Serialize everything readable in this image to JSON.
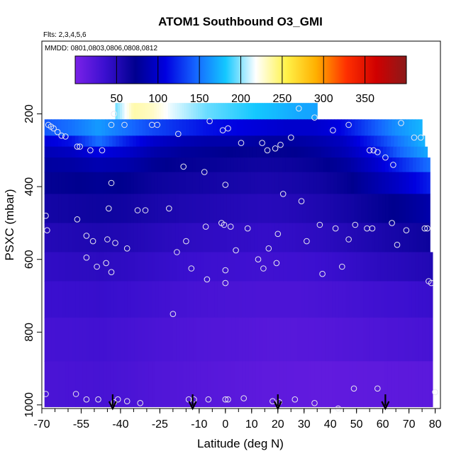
{
  "chart_data": {
    "type": "heatmap",
    "title": "ATOM1 Southbound O3_GMI",
    "annotations": [
      "Flts: 2,3,4,5,6",
      "MMDD: 0801,0803,0806,0808,0812"
    ],
    "xlabel": "Latitude (deg N)",
    "ylabel": "PSXC (mbar)",
    "xlim": [
      -70,
      82
    ],
    "ylim": [
      1010,
      0
    ],
    "x_ticks": [
      -70,
      -55,
      -40,
      -25,
      -10,
      0,
      10,
      20,
      30,
      40,
      50,
      60,
      70,
      80
    ],
    "x_tick_labels": [
      "-70",
      "-55",
      "-40",
      "-25",
      "-10",
      "0",
      "10",
      "20",
      "30",
      "40",
      "50",
      "60",
      "70",
      "80"
    ],
    "y_ticks": [
      200,
      400,
      600,
      800,
      1000
    ],
    "y_tick_labels": [
      "200",
      "400",
      "600",
      "800",
      "1000"
    ],
    "colorbar": {
      "range": [
        0,
        400
      ],
      "ticks": [
        50,
        100,
        150,
        200,
        250,
        300,
        350
      ],
      "tick_labels": [
        "50",
        "100",
        "150",
        "200",
        "250",
        "300",
        "350"
      ],
      "colors": [
        "#7a22e8",
        "#3a0fcf",
        "#00008f",
        "#0000e0",
        "#1565ff",
        "#14c8ff",
        "#ffffff",
        "#fff34a",
        "#ffb000",
        "#ff3000",
        "#d00000",
        "#8b1a1a"
      ]
    },
    "curtain": {
      "lat_range": [
        -69,
        80
      ],
      "fields": [
        {
          "p_top": 170,
          "p_bottom": 215,
          "lat_from": -42,
          "lat_to": 35,
          "o3": [
            195,
            235,
            230,
            215,
            205,
            195,
            190,
            185,
            180,
            175,
            170,
            168
          ]
        },
        {
          "p_top": 215,
          "p_bottom": 260,
          "lat_from": -69,
          "lat_to": 75,
          "o3": [
            140,
            150,
            165,
            150,
            135,
            125,
            115,
            110,
            105,
            100,
            100,
            110,
            135,
            160,
            175
          ]
        },
        {
          "p_top": 260,
          "p_bottom": 290,
          "lat_from": -69,
          "lat_to": 76,
          "o3": [
            105,
            115,
            150,
            120,
            100,
            90,
            85,
            85,
            80,
            80,
            85,
            95,
            120,
            150,
            175
          ]
        },
        {
          "p_top": 290,
          "p_bottom": 320,
          "lat_from": -69,
          "lat_to": 77,
          "o3": [
            90,
            95,
            110,
            100,
            85,
            78,
            75,
            72,
            70,
            72,
            78,
            90,
            110,
            145,
            170
          ]
        },
        {
          "p_top": 320,
          "p_bottom": 360,
          "lat_from": -69,
          "lat_to": 78,
          "o3": [
            80,
            82,
            88,
            85,
            75,
            70,
            68,
            65,
            63,
            65,
            70,
            80,
            100,
            125,
            150
          ]
        },
        {
          "p_top": 360,
          "p_bottom": 420,
          "lat_from": -69,
          "lat_to": 78,
          "o3": [
            70,
            72,
            75,
            72,
            65,
            62,
            60,
            58,
            56,
            58,
            62,
            70,
            85,
            100,
            120
          ]
        },
        {
          "p_top": 420,
          "p_bottom": 500,
          "lat_from": -69,
          "lat_to": 78,
          "o3": [
            60,
            62,
            64,
            62,
            57,
            54,
            52,
            50,
            48,
            50,
            54,
            60,
            68,
            75,
            85
          ]
        },
        {
          "p_top": 500,
          "p_bottom": 580,
          "lat_from": -69,
          "lat_to": 78,
          "o3": [
            50,
            52,
            54,
            52,
            48,
            45,
            43,
            42,
            40,
            42,
            45,
            50,
            55,
            60,
            65
          ]
        },
        {
          "p_top": 580,
          "p_bottom": 660,
          "lat_from": -69,
          "lat_to": 79,
          "o3": [
            42,
            44,
            45,
            43,
            40,
            37,
            35,
            34,
            33,
            34,
            36,
            40,
            45,
            48,
            52
          ]
        },
        {
          "p_top": 660,
          "p_bottom": 760,
          "lat_from": -69,
          "lat_to": 79,
          "o3": [
            36,
            37,
            38,
            36,
            33,
            30,
            28,
            27,
            26,
            26,
            28,
            30,
            33,
            35,
            38
          ]
        },
        {
          "p_top": 760,
          "p_bottom": 880,
          "lat_from": -69,
          "lat_to": 79,
          "o3": [
            30,
            31,
            32,
            30,
            27,
            25,
            23,
            22,
            20,
            20,
            21,
            23,
            25,
            27,
            29
          ]
        },
        {
          "p_top": 880,
          "p_bottom": 1005,
          "lat_from": -69,
          "lat_to": 79,
          "o3": [
            27,
            28,
            29,
            27,
            24,
            22,
            20,
            18,
            16,
            15,
            14,
            15,
            16,
            17,
            18
          ]
        }
      ]
    },
    "samples": [
      [
        -67.5,
        230
      ],
      [
        -66.5,
        235
      ],
      [
        -65.5,
        240
      ],
      [
        -64,
        250
      ],
      [
        -62.5,
        260
      ],
      [
        -61,
        262
      ],
      [
        -56.5,
        290
      ],
      [
        -55.5,
        290
      ],
      [
        -51.5,
        300
      ],
      [
        -47,
        300
      ],
      [
        -42.5,
        200
      ],
      [
        -43.5,
        230
      ],
      [
        -38.5,
        230
      ],
      [
        -28,
        230
      ],
      [
        -26,
        230
      ],
      [
        -18,
        255
      ],
      [
        -6,
        220
      ],
      [
        1,
        240
      ],
      [
        -1,
        245
      ],
      [
        -8,
        360
      ],
      [
        -16,
        345
      ],
      [
        0,
        395
      ],
      [
        6,
        280
      ],
      [
        14,
        280
      ],
      [
        16,
        300
      ],
      [
        19,
        295
      ],
      [
        21,
        285
      ],
      [
        25,
        265
      ],
      [
        28,
        185
      ],
      [
        34,
        210
      ],
      [
        41,
        245
      ],
      [
        47,
        230
      ],
      [
        55,
        300
      ],
      [
        56.5,
        300
      ],
      [
        58,
        305
      ],
      [
        61,
        320
      ],
      [
        64,
        340
      ],
      [
        67,
        225
      ],
      [
        72,
        265
      ],
      [
        74.5,
        265
      ],
      [
        -68.5,
        480
      ],
      [
        -68,
        520
      ],
      [
        -56.5,
        490
      ],
      [
        -53,
        535
      ],
      [
        -50.5,
        550
      ],
      [
        -45,
        545
      ],
      [
        -44.5,
        460
      ],
      [
        -42,
        555
      ],
      [
        -37.5,
        570
      ],
      [
        -33.5,
        465
      ],
      [
        -30.5,
        465
      ],
      [
        -21.5,
        460
      ],
      [
        -18.5,
        580
      ],
      [
        -15,
        550
      ],
      [
        -7.5,
        510
      ],
      [
        -1.5,
        500
      ],
      [
        -0.5,
        505
      ],
      [
        2,
        510
      ],
      [
        4,
        575
      ],
      [
        8.5,
        515
      ],
      [
        12.5,
        600
      ],
      [
        16.5,
        570
      ],
      [
        20,
        530
      ],
      [
        22,
        420
      ],
      [
        29,
        440
      ],
      [
        31,
        550
      ],
      [
        36,
        505
      ],
      [
        42,
        515
      ],
      [
        47,
        545
      ],
      [
        49.5,
        505
      ],
      [
        54,
        515
      ],
      [
        56,
        515
      ],
      [
        63.5,
        500
      ],
      [
        65.5,
        560
      ],
      [
        69,
        520
      ],
      [
        76,
        515
      ],
      [
        77,
        515
      ],
      [
        77.5,
        660
      ],
      [
        78.5,
        665
      ],
      [
        -53,
        595
      ],
      [
        -49,
        620
      ],
      [
        -45.5,
        610
      ],
      [
        -43.5,
        390
      ],
      [
        -43.5,
        635
      ],
      [
        -13,
        625
      ],
      [
        -7,
        655
      ],
      [
        0,
        630
      ],
      [
        0,
        665
      ],
      [
        14.5,
        625
      ],
      [
        19.5,
        610
      ],
      [
        44.5,
        620
      ],
      [
        37,
        640
      ],
      [
        -20,
        750
      ],
      [
        -68.5,
        970
      ],
      [
        -57,
        970
      ],
      [
        -53,
        985
      ],
      [
        -48.5,
        985
      ],
      [
        -42.5,
        993
      ],
      [
        -41,
        985
      ],
      [
        -37.5,
        990
      ],
      [
        -32.5,
        995
      ],
      [
        -14,
        985
      ],
      [
        -12,
        985
      ],
      [
        -6.5,
        985
      ],
      [
        0,
        985
      ],
      [
        1,
        985
      ],
      [
        7,
        982
      ],
      [
        18,
        990
      ],
      [
        20.5,
        992
      ],
      [
        26.5,
        985
      ],
      [
        34,
        995
      ],
      [
        43,
        1010
      ],
      [
        49,
        955
      ],
      [
        58,
        955
      ],
      [
        80,
        965
      ]
    ],
    "arrows_lat": [
      -43,
      -12.5,
      20,
      61
    ]
  }
}
